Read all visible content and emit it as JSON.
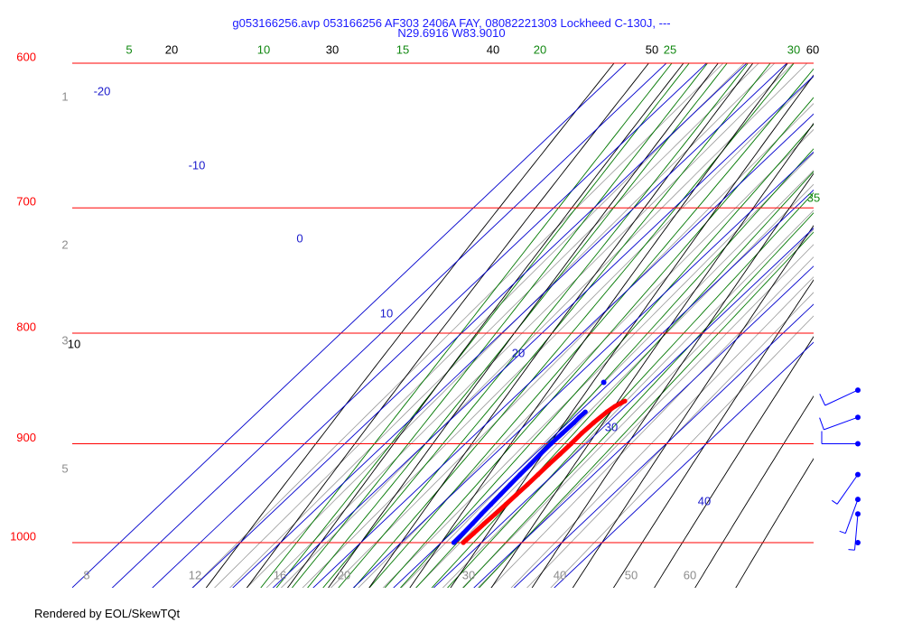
{
  "header": {
    "title_line1": "g053166256.avp 053166256 AF303 2406A FAY, 08082221303 Lockheed C-130J, ---",
    "title_line2": "N29.6916 W83.9010"
  },
  "footer": {
    "text": "Rendered by EOL/SkewTQt"
  },
  "colors": {
    "isobar": "#ff0000",
    "isotherm": "#0000cc",
    "dry_adiabat": "#000000",
    "moist_adiabat": "#007700",
    "mixing_ratio": "#999999",
    "temperature": "#ff0000",
    "dewpoint": "#0000ff",
    "wind": "#0000ff"
  },
  "chart_data": {
    "type": "skew-t log-p",
    "pressure_range_hpa": [
      1000,
      600
    ],
    "isobars": [
      {
        "p": 600,
        "label": "600"
      },
      {
        "p": 700,
        "label": "700"
      },
      {
        "p": 800,
        "label": "800"
      },
      {
        "p": 900,
        "label": "900"
      },
      {
        "p": 1000,
        "label": "1000"
      }
    ],
    "isotherm_labels": [
      "-20",
      "-10",
      "0",
      "10",
      "20",
      "30",
      "40"
    ],
    "dry_adiabat_labels": [
      "10",
      "20",
      "30",
      "40",
      "50",
      "60"
    ],
    "moist_adiabat_labels": [
      "5",
      "10",
      "15",
      "20",
      "25",
      "30",
      "35"
    ],
    "mixing_ratio_labels": [
      "1",
      "2",
      "3",
      "5",
      "8",
      "12",
      "16",
      "20",
      "30",
      "40",
      "50",
      "60"
    ],
    "series": [
      {
        "name": "temperature",
        "p": [
          1000,
          990,
          980,
          970,
          960,
          950,
          940,
          930,
          920,
          910,
          900,
          890,
          880,
          870,
          865,
          862,
          860
        ],
        "t_c": [
          25.5,
          25.6,
          25.7,
          25.9,
          26.0,
          26.1,
          26.2,
          26.2,
          26.2,
          26.3,
          26.3,
          26.2,
          26.4,
          26.9,
          27.4,
          28.0,
          28.5
        ]
      },
      {
        "name": "dewpoint",
        "p": [
          1000,
          990,
          980,
          970,
          960,
          950,
          940,
          930,
          920,
          910,
          900,
          890,
          880,
          875,
          870
        ],
        "td_c": [
          23.1,
          23.0,
          22.8,
          22.5,
          22.3,
          22.1,
          21.9,
          21.7,
          21.6,
          21.4,
          21.3,
          21.4,
          21.5,
          21.4,
          21.5
        ]
      },
      {
        "name": "dewpoint-isolated",
        "p": [
          843
        ],
        "td_c": [
          18.3
        ]
      }
    ],
    "winds": [
      {
        "p": 1000,
        "direction_deg": 180,
        "speed_kt": 0
      },
      {
        "p": 970,
        "direction_deg": 185,
        "speed_kt": 5
      },
      {
        "p": 955,
        "direction_deg": 200,
        "speed_kt": 5
      },
      {
        "p": 930,
        "direction_deg": 215,
        "speed_kt": 5
      },
      {
        "p": 900,
        "direction_deg": 270,
        "speed_kt": 10
      },
      {
        "p": 875,
        "direction_deg": 250,
        "speed_kt": 10
      },
      {
        "p": 850,
        "direction_deg": 245,
        "speed_kt": 10
      }
    ]
  }
}
